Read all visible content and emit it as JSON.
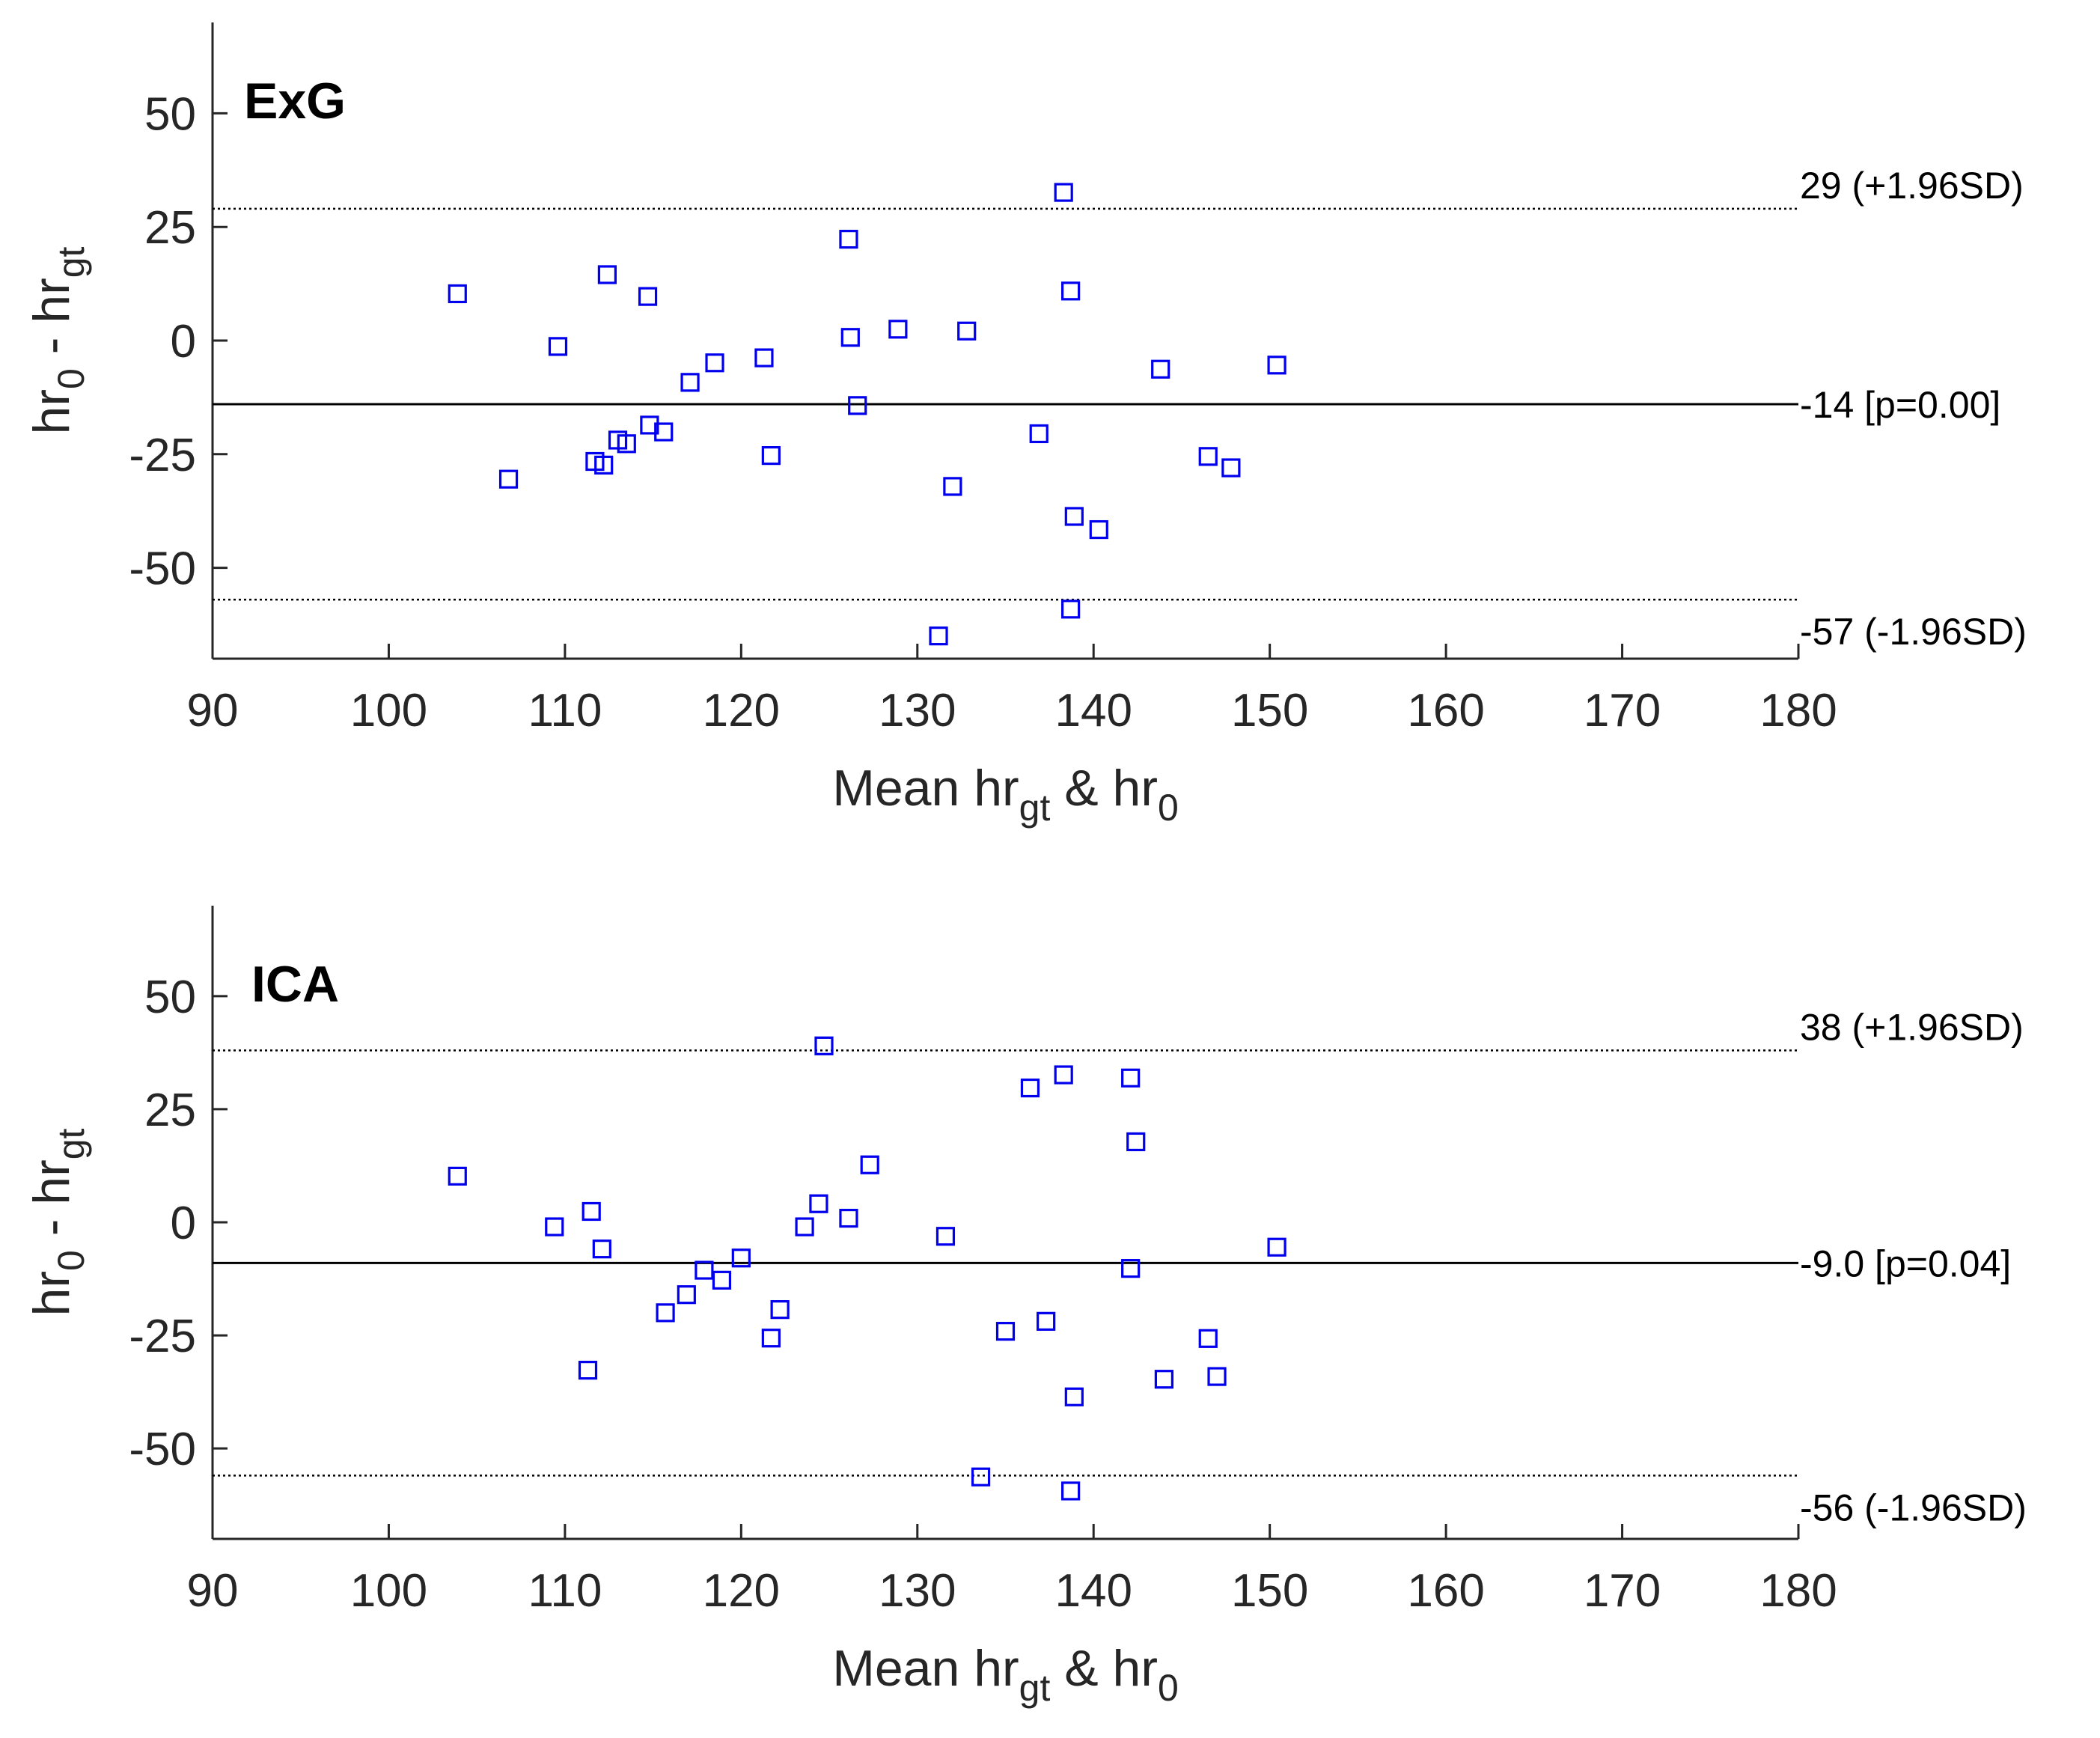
{
  "colors": {
    "marker": "#0000ee",
    "axis": "#262626",
    "line": "#000000"
  },
  "chart_data": [
    {
      "type": "scatter",
      "title": "ExG",
      "xlabel": {
        "main": "Mean hr",
        "sub1": "gt",
        "mid": " & hr",
        "sub2": "0"
      },
      "ylabel": {
        "main1": "hr",
        "sub1": "0",
        "mid": " - hr",
        "sub2": "gt"
      },
      "xlim": [
        90,
        180
      ],
      "ylim": [
        -70,
        70
      ],
      "xticks": [
        "90",
        "100",
        "110",
        "120",
        "130",
        "140",
        "150",
        "160",
        "170",
        "180"
      ],
      "yticks": [
        "50",
        "25",
        "0",
        "-25",
        "-50"
      ],
      "mean": -14,
      "upper_loa": 29,
      "lower_loa": -57,
      "mean_label": "-14 [p=0.00]",
      "upper_label": "29 (+1.96SD)",
      "lower_label": "-57 (-1.96SD)",
      "points": [
        [
          103.9,
          10.3
        ],
        [
          106.8,
          -30.5
        ],
        [
          109.6,
          -1.3
        ],
        [
          111.7,
          -26.6
        ],
        [
          112.2,
          -27.4
        ],
        [
          112.4,
          14.5
        ],
        [
          113.0,
          -21.9
        ],
        [
          113.5,
          -22.7
        ],
        [
          114.7,
          9.7
        ],
        [
          114.8,
          -18.6
        ],
        [
          115.6,
          -20.1
        ],
        [
          117.1,
          -9.2
        ],
        [
          118.5,
          -4.9
        ],
        [
          121.3,
          -3.8
        ],
        [
          121.7,
          -25.3
        ],
        [
          126.1,
          22.3
        ],
        [
          126.2,
          0.7
        ],
        [
          126.6,
          -14.3
        ],
        [
          128.9,
          2.5
        ],
        [
          132.0,
          -32.1
        ],
        [
          132.8,
          2.1
        ],
        [
          131.2,
          -65.0
        ],
        [
          136.9,
          -20.5
        ],
        [
          138.3,
          32.6
        ],
        [
          138.7,
          10.9
        ],
        [
          138.7,
          -59.1
        ],
        [
          138.9,
          -38.7
        ],
        [
          140.3,
          -41.6
        ],
        [
          143.8,
          -6.3
        ],
        [
          146.5,
          -25.5
        ],
        [
          147.8,
          -28.0
        ],
        [
          150.4,
          -5.4
        ]
      ]
    },
    {
      "type": "scatter",
      "title": "ICA",
      "xlabel": {
        "main": "Mean hr",
        "sub1": "gt",
        "mid": " & hr",
        "sub2": "0"
      },
      "ylabel": {
        "main1": "hr",
        "sub1": "0",
        "mid": " - hr",
        "sub2": "gt"
      },
      "xlim": [
        90,
        180
      ],
      "ylim": [
        -70,
        70
      ],
      "xticks": [
        "90",
        "100",
        "110",
        "120",
        "130",
        "140",
        "150",
        "160",
        "170",
        "180"
      ],
      "yticks": [
        "50",
        "25",
        "0",
        "-25",
        "-50"
      ],
      "mean": -9.0,
      "upper_loa": 38,
      "lower_loa": -56,
      "mean_label": "-9.0 [p=0.04]",
      "upper_label": "38 (+1.96SD)",
      "lower_label": "-56 (-1.96SD)",
      "points": [
        [
          103.9,
          10.2
        ],
        [
          109.4,
          -1.0
        ],
        [
          111.3,
          -32.7
        ],
        [
          111.5,
          2.4
        ],
        [
          112.1,
          -5.9
        ],
        [
          115.7,
          -20.0
        ],
        [
          116.9,
          -16.0
        ],
        [
          117.9,
          -10.6
        ],
        [
          118.9,
          -12.8
        ],
        [
          120.0,
          -7.9
        ],
        [
          121.7,
          -25.6
        ],
        [
          122.2,
          -19.3
        ],
        [
          123.6,
          -1.0
        ],
        [
          124.4,
          4.1
        ],
        [
          124.7,
          39.0
        ],
        [
          126.1,
          0.9
        ],
        [
          127.3,
          12.7
        ],
        [
          131.6,
          -3.1
        ],
        [
          133.6,
          -56.3
        ],
        [
          135.0,
          -24.1
        ],
        [
          136.4,
          29.7
        ],
        [
          137.3,
          -21.9
        ],
        [
          138.3,
          32.6
        ],
        [
          138.7,
          -59.4
        ],
        [
          138.9,
          -38.6
        ],
        [
          142.1,
          31.9
        ],
        [
          142.1,
          -10.2
        ],
        [
          142.4,
          17.8
        ],
        [
          144.0,
          -34.7
        ],
        [
          146.5,
          -25.7
        ],
        [
          147.0,
          -34.1
        ],
        [
          150.4,
          -5.5
        ]
      ]
    }
  ]
}
